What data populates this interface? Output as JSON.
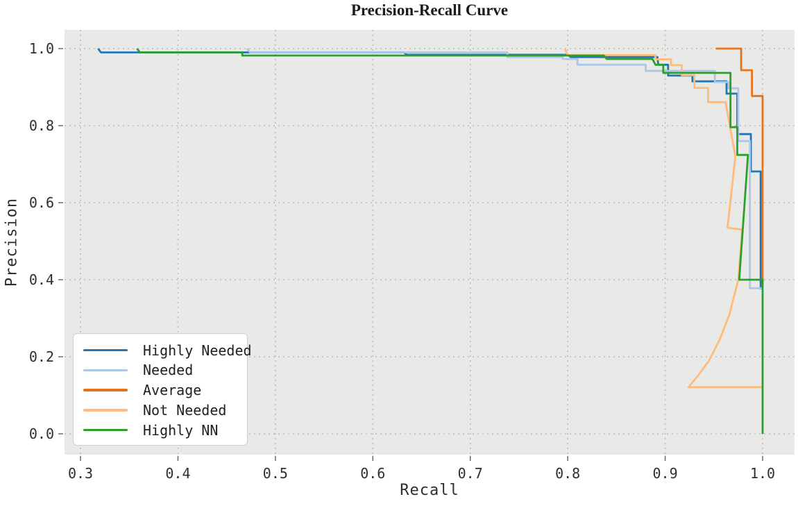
{
  "chart_data": {
    "type": "line",
    "title": "Precision-Recall Curve",
    "xlabel": "Recall",
    "ylabel": "Precision",
    "x_ticks": [
      "0.3",
      "0.4",
      "0.5",
      "0.6",
      "0.7",
      "0.8",
      "0.9",
      "1.0"
    ],
    "y_ticks": [
      "0.0",
      "0.2",
      "0.4",
      "0.6",
      "0.8",
      "1.0"
    ],
    "xlim": [
      0.284,
      1.033
    ],
    "ylim": [
      -0.054,
      1.049
    ],
    "grid": "dotted",
    "plot_bg_color": "#e9e9e7",
    "grid_color": "#bcbcbc",
    "legend_position": "lower-left",
    "series": [
      {
        "name": "Highly Needed",
        "color": "#1f77b4",
        "points": [
          [
            0.318,
            1.0
          ],
          [
            0.321,
            0.99
          ],
          [
            0.632,
            0.99
          ],
          [
            0.635,
            0.984
          ],
          [
            0.8,
            0.984
          ],
          [
            0.803,
            0.978
          ],
          [
            0.892,
            0.978
          ],
          [
            0.893,
            0.958
          ],
          [
            0.903,
            0.958
          ],
          [
            0.903,
            0.93
          ],
          [
            0.928,
            0.93
          ],
          [
            0.928,
            0.915
          ],
          [
            0.963,
            0.915
          ],
          [
            0.963,
            0.883
          ],
          [
            0.974,
            0.883
          ],
          [
            0.974,
            0.778
          ],
          [
            0.988,
            0.778
          ],
          [
            0.988,
            0.681
          ],
          [
            0.998,
            0.681
          ],
          [
            0.998,
            0.375
          ]
        ]
      },
      {
        "name": "Needed",
        "color": "#aec7e8",
        "points": [
          [
            0.471,
            1.0
          ],
          [
            0.474,
            0.99
          ],
          [
            0.738,
            0.99
          ],
          [
            0.738,
            0.978
          ],
          [
            0.795,
            0.978
          ],
          [
            0.795,
            0.973
          ],
          [
            0.81,
            0.973
          ],
          [
            0.81,
            0.958
          ],
          [
            0.88,
            0.958
          ],
          [
            0.88,
            0.942
          ],
          [
            0.951,
            0.942
          ],
          [
            0.951,
            0.913
          ],
          [
            0.965,
            0.913
          ],
          [
            0.965,
            0.897
          ],
          [
            0.975,
            0.897
          ],
          [
            0.975,
            0.76
          ],
          [
            0.987,
            0.76
          ],
          [
            0.987,
            0.733
          ],
          [
            0.987,
            0.378
          ],
          [
            0.999,
            0.378
          ]
        ]
      },
      {
        "name": "Average",
        "color": "#e8731a",
        "points": [
          [
            0.952,
            1.0
          ],
          [
            0.978,
            1.0
          ],
          [
            0.978,
            0.944
          ],
          [
            0.989,
            0.944
          ],
          [
            0.989,
            0.877
          ],
          [
            1.0,
            0.877
          ],
          [
            1.0,
            0.385
          ]
        ]
      },
      {
        "name": "Not Needed",
        "color": "#ffbb78",
        "points": [
          [
            0.797,
            1.0
          ],
          [
            0.8,
            0.983
          ],
          [
            0.89,
            0.983
          ],
          [
            0.89,
            0.972
          ],
          [
            0.906,
            0.972
          ],
          [
            0.906,
            0.957
          ],
          [
            0.917,
            0.957
          ],
          [
            0.917,
            0.931
          ],
          [
            0.93,
            0.931
          ],
          [
            0.93,
            0.898
          ],
          [
            0.944,
            0.898
          ],
          [
            0.944,
            0.861
          ],
          [
            0.962,
            0.861
          ],
          [
            0.972,
            0.72
          ],
          [
            0.964,
            0.535
          ],
          [
            0.979,
            0.53
          ],
          [
            0.975,
            0.4
          ],
          [
            0.966,
            0.31
          ],
          [
            0.956,
            0.245
          ],
          [
            0.945,
            0.19
          ],
          [
            0.934,
            0.152
          ],
          [
            0.924,
            0.121
          ],
          [
            0.999,
            0.121
          ]
        ]
      },
      {
        "name": "Highly NN",
        "color": "#2ca02c",
        "points": [
          [
            0.358,
            1.0
          ],
          [
            0.361,
            0.99
          ],
          [
            0.466,
            0.99
          ],
          [
            0.466,
            0.982
          ],
          [
            0.837,
            0.982
          ],
          [
            0.84,
            0.973
          ],
          [
            0.887,
            0.973
          ],
          [
            0.89,
            0.958
          ],
          [
            0.898,
            0.958
          ],
          [
            0.898,
            0.937
          ],
          [
            0.967,
            0.937
          ],
          [
            0.967,
            0.796
          ],
          [
            0.974,
            0.796
          ],
          [
            0.974,
            0.724
          ],
          [
            0.985,
            0.724
          ],
          [
            0.976,
            0.4
          ],
          [
            1.0,
            0.4
          ],
          [
            1.0,
            0.0
          ]
        ]
      }
    ]
  }
}
